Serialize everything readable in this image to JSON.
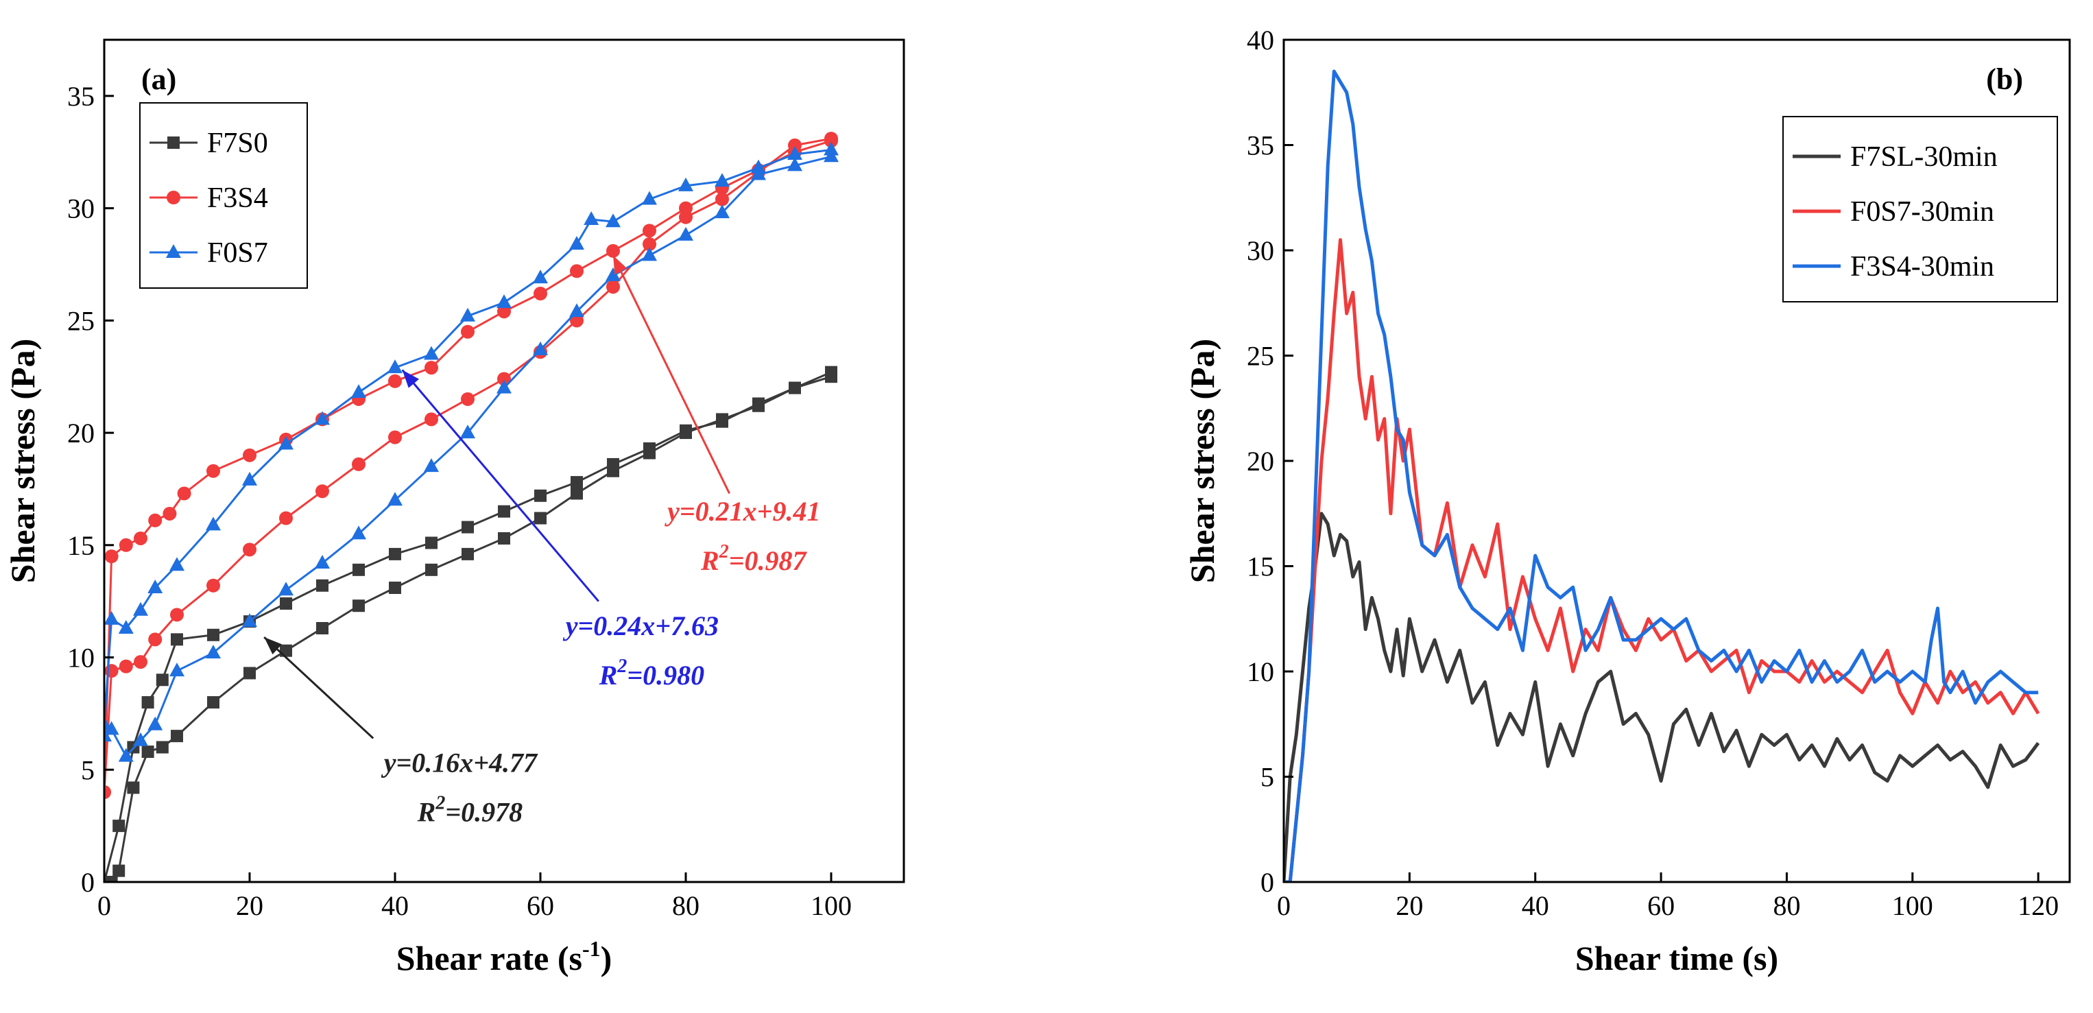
{
  "chart_data": [
    {
      "type": "line",
      "panel_label": "(a)",
      "xlabel": "Shear rate (s",
      "xlabel_sup": "-1",
      "xlabel_end": ")",
      "ylabel": "Shear stress (Pa)",
      "xlim": [
        0,
        110
      ],
      "ylim": [
        0,
        37.5
      ],
      "xticks": [
        0,
        20,
        40,
        60,
        80,
        100
      ],
      "yticks": [
        0,
        5,
        10,
        15,
        20,
        25,
        30,
        35
      ],
      "legend_position": "top-left",
      "series": [
        {
          "name": "F7S0",
          "color": "#3a3a3a",
          "marker": "square",
          "up_x": [
            0,
            2,
            4,
            6,
            8,
            10,
            15,
            20,
            25,
            30,
            35,
            40,
            45,
            50,
            55,
            60,
            65,
            70,
            75,
            80,
            85,
            90,
            95,
            100
          ],
          "up_y": [
            0,
            2.5,
            6,
            8,
            9,
            10.8,
            11.0,
            11.6,
            12.4,
            13.2,
            13.9,
            14.6,
            15.1,
            15.8,
            16.5,
            17.2,
            17.8,
            18.6,
            19.3,
            20.1,
            20.5,
            21.3,
            22.0,
            22.7
          ],
          "down_x": [
            100,
            95,
            90,
            85,
            80,
            75,
            70,
            65,
            60,
            55,
            50,
            45,
            40,
            35,
            30,
            25,
            20,
            15,
            10,
            8,
            6,
            4,
            2,
            1
          ],
          "down_y": [
            22.5,
            22.0,
            21.2,
            20.6,
            20.0,
            19.1,
            18.3,
            17.3,
            16.2,
            15.3,
            14.6,
            13.9,
            13.1,
            12.3,
            11.3,
            10.3,
            9.3,
            8.0,
            6.5,
            6.0,
            5.8,
            4.2,
            0.5,
            0
          ]
        },
        {
          "name": "F3S4",
          "color": "#f03c3c",
          "marker": "circle",
          "up_x": [
            0,
            1,
            3,
            5,
            7,
            9,
            11,
            15,
            20,
            25,
            30,
            35,
            40,
            45,
            50,
            55,
            60,
            65,
            70,
            75,
            80,
            85,
            90,
            95,
            100
          ],
          "up_y": [
            4,
            14.5,
            15.0,
            15.3,
            16.1,
            16.4,
            17.3,
            18.3,
            19.0,
            19.7,
            20.6,
            21.5,
            22.3,
            22.9,
            24.5,
            25.4,
            26.2,
            27.2,
            28.1,
            29.0,
            30.0,
            30.9,
            31.7,
            32.5,
            33.0
          ],
          "down_x": [
            100,
            95,
            90,
            85,
            80,
            75,
            70,
            65,
            60,
            55,
            50,
            45,
            40,
            35,
            30,
            25,
            20,
            15,
            10,
            7,
            5,
            3,
            1,
            0
          ],
          "down_y": [
            33.1,
            32.8,
            31.6,
            30.4,
            29.6,
            28.4,
            26.5,
            25.0,
            23.6,
            22.4,
            21.5,
            20.6,
            19.8,
            18.6,
            17.4,
            16.2,
            14.8,
            13.2,
            11.9,
            10.8,
            9.8,
            9.6,
            9.4,
            4
          ]
        },
        {
          "name": "F0S7",
          "color": "#1f6fe0",
          "marker": "triangle",
          "up_x": [
            0,
            1,
            3,
            5,
            7,
            10,
            15,
            20,
            25,
            30,
            35,
            40,
            45,
            50,
            55,
            60,
            65,
            67,
            70,
            75,
            80,
            85,
            90,
            95,
            100
          ],
          "up_y": [
            7,
            11.7,
            11.3,
            12.1,
            13.1,
            14.1,
            15.9,
            17.9,
            19.5,
            20.6,
            21.8,
            22.9,
            23.5,
            25.2,
            25.8,
            26.9,
            28.4,
            29.5,
            29.4,
            30.4,
            31.0,
            31.2,
            31.8,
            32.4,
            32.6
          ],
          "down_x": [
            100,
            95,
            90,
            85,
            80,
            75,
            70,
            65,
            60,
            55,
            50,
            45,
            40,
            35,
            30,
            25,
            20,
            15,
            10,
            7,
            5,
            3,
            1,
            0
          ],
          "down_y": [
            32.3,
            31.9,
            31.5,
            29.8,
            28.8,
            27.9,
            27.0,
            25.4,
            23.7,
            22.0,
            20.0,
            18.5,
            17.0,
            15.5,
            14.2,
            13.0,
            11.6,
            10.2,
            9.4,
            7.0,
            6.3,
            5.6,
            6.8,
            6.5
          ]
        }
      ],
      "annotations": [
        {
          "line1": "y=0.21x+9.41",
          "r2_prefix": "R",
          "r2_sup": "2",
          "r2_value": "=0.987",
          "color": "#f03c3c",
          "text_at": [
            88,
            16.1
          ],
          "arrow_from": [
            86,
            17.3
          ],
          "arrow_to": [
            70,
            27.9
          ]
        },
        {
          "line1": "y=0.24x+7.63",
          "r2_prefix": "R",
          "r2_sup": "2",
          "r2_value": "=0.980",
          "color": "#2222dd",
          "text_at": [
            74,
            11.0
          ],
          "arrow_from": [
            68,
            12.5
          ],
          "arrow_to": [
            41,
            22.8
          ]
        },
        {
          "line1": "y=0.16x+4.77",
          "r2_prefix": "R",
          "r2_sup": "2",
          "r2_value": "=0.978",
          "color": "#222222",
          "text_at": [
            49,
            4.9
          ],
          "arrow_from": [
            37,
            6.4
          ],
          "arrow_to": [
            22,
            10.9
          ]
        }
      ]
    },
    {
      "type": "line",
      "panel_label": "(b)",
      "xlabel": "Shear time (s)",
      "ylabel": "Shear stress (Pa)",
      "xlim": [
        0,
        125
      ],
      "ylim": [
        0,
        40
      ],
      "xticks": [
        0,
        20,
        40,
        60,
        80,
        100,
        120
      ],
      "yticks": [
        0,
        5,
        10,
        15,
        20,
        25,
        30,
        35,
        40
      ],
      "legend_position": "top-right",
      "series": [
        {
          "name": "F7SL-30min",
          "color": "#3a3a3a",
          "x": [
            0,
            1,
            2,
            3,
            4,
            5,
            6,
            7,
            8,
            9,
            10,
            11,
            12,
            13,
            14,
            15,
            16,
            17,
            18,
            19,
            20,
            22,
            24,
            26,
            28,
            30,
            32,
            34,
            36,
            38,
            40,
            42,
            44,
            46,
            48,
            50,
            52,
            54,
            56,
            58,
            60,
            62,
            64,
            66,
            68,
            70,
            72,
            74,
            76,
            78,
            80,
            82,
            84,
            86,
            88,
            90,
            92,
            94,
            96,
            98,
            100,
            102,
            104,
            106,
            108,
            110,
            112,
            114,
            116,
            118,
            120
          ],
          "y": [
            0,
            5,
            7,
            10,
            13,
            15,
            17.5,
            17,
            15.5,
            16.5,
            16.2,
            14.5,
            15.2,
            12,
            13.5,
            12.5,
            11,
            10,
            12,
            9.8,
            12.5,
            10,
            11.5,
            9.5,
            11,
            8.5,
            9.5,
            6.5,
            8,
            7,
            9.5,
            5.5,
            7.5,
            6,
            8,
            9.5,
            10,
            7.5,
            8,
            7,
            4.8,
            7.5,
            8.2,
            6.5,
            8,
            6.2,
            7.2,
            5.5,
            7,
            6.5,
            7,
            5.8,
            6.5,
            5.5,
            6.8,
            5.8,
            6.5,
            5.2,
            4.8,
            6,
            5.5,
            6,
            6.5,
            5.8,
            6.2,
            5.5,
            4.5,
            6.5,
            5.5,
            5.8,
            6.6
          ]
        },
        {
          "name": "F0S7-30min",
          "color": "#f03c3c",
          "x": [
            0,
            1,
            2,
            3,
            4,
            5,
            6,
            7,
            8,
            9,
            10,
            11,
            12,
            13,
            14,
            15,
            16,
            17,
            18,
            19,
            20,
            22,
            24,
            26,
            28,
            30,
            32,
            34,
            36,
            38,
            40,
            42,
            44,
            46,
            48,
            50,
            52,
            54,
            56,
            58,
            60,
            62,
            64,
            66,
            68,
            70,
            72,
            74,
            76,
            78,
            80,
            82,
            84,
            86,
            88,
            90,
            92,
            94,
            96,
            98,
            100,
            102,
            104,
            106,
            108,
            110,
            112,
            114,
            116,
            118,
            120
          ],
          "y": [
            0,
            0,
            3,
            6,
            10,
            15,
            20,
            23,
            27,
            30.5,
            27,
            28,
            24,
            22,
            24,
            21,
            22,
            17.5,
            22,
            20,
            21.5,
            16,
            15.5,
            18,
            14,
            16,
            14.5,
            17,
            12,
            14.5,
            12.5,
            11,
            13,
            10,
            12,
            11,
            13.5,
            12,
            11,
            12.5,
            11.5,
            12,
            10.5,
            11,
            10,
            10.5,
            11,
            9,
            10.5,
            10,
            10,
            9.5,
            10.5,
            9.5,
            10,
            9.5,
            9,
            10,
            11,
            9,
            8,
            9.5,
            8.5,
            10,
            9,
            9.5,
            8.5,
            9,
            8,
            9,
            8
          ]
        },
        {
          "name": "F3S4-30min",
          "color": "#1f6fe0",
          "x": [
            0,
            1,
            2,
            3,
            4,
            5,
            6,
            7,
            8,
            9,
            10,
            11,
            12,
            13,
            14,
            15,
            16,
            17,
            18,
            19,
            20,
            22,
            24,
            26,
            28,
            30,
            32,
            34,
            36,
            38,
            40,
            42,
            44,
            46,
            48,
            50,
            52,
            54,
            56,
            58,
            60,
            62,
            64,
            66,
            68,
            70,
            72,
            74,
            76,
            78,
            80,
            82,
            84,
            86,
            88,
            90,
            92,
            94,
            96,
            98,
            100,
            102,
            103,
            104,
            105,
            106,
            108,
            110,
            112,
            114,
            116,
            118,
            120
          ],
          "y": [
            0,
            0,
            3,
            6,
            10,
            18,
            26,
            34,
            38.5,
            38,
            37.5,
            36,
            33,
            31,
            29.5,
            27,
            26,
            24,
            21.5,
            21,
            18.5,
            16,
            15.5,
            16.5,
            14,
            13,
            12.5,
            12,
            13,
            11,
            15.5,
            14,
            13.5,
            14,
            11,
            12,
            13.5,
            11.5,
            11.5,
            12,
            12.5,
            12,
            12.5,
            11,
            10.5,
            11,
            10,
            11,
            9.5,
            10.5,
            10,
            11,
            9.5,
            10.5,
            9.5,
            10,
            11,
            9.5,
            10,
            9.5,
            10,
            9.5,
            11.5,
            13,
            9.5,
            9,
            10,
            8.5,
            9.5,
            10,
            9.5,
            9,
            9
          ]
        }
      ]
    }
  ]
}
